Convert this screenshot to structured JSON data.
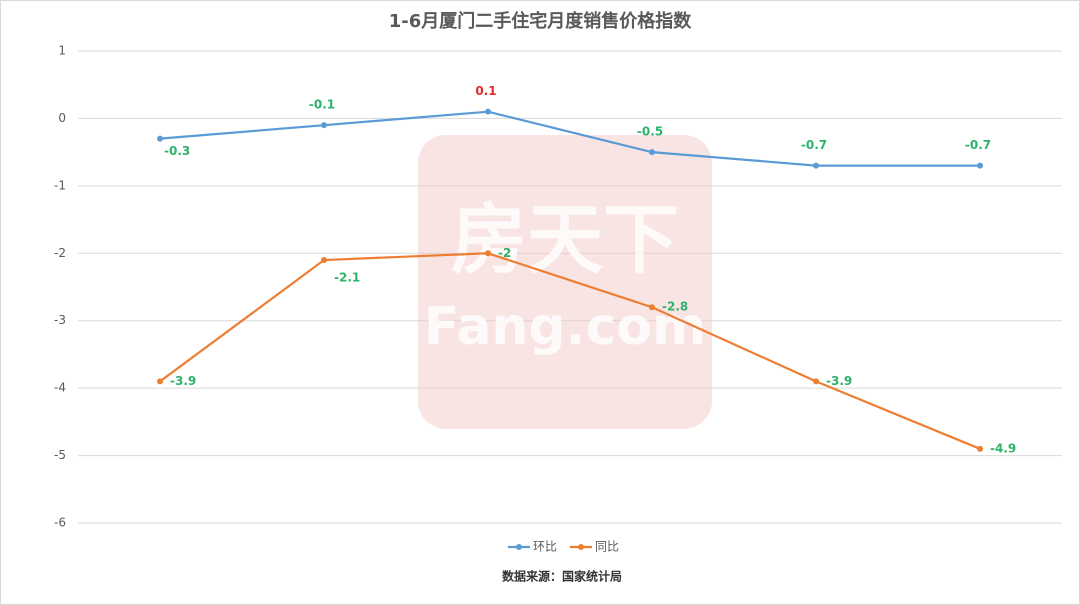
{
  "chart_data": {
    "type": "line",
    "title": "1-6月厦门二手住宅月度销售价格指数",
    "categories": [
      null,
      null,
      null,
      null,
      null,
      null
    ],
    "series": [
      {
        "name": "环比",
        "color": "#5b9bd5",
        "values": [
          -0.3,
          -0.1,
          0.1,
          -0.5,
          -0.7,
          -0.7
        ]
      },
      {
        "name": "同比",
        "color": "#ed7d31",
        "values": [
          -3.9,
          -2.1,
          -2,
          -2.8,
          -3.9,
          -4.9
        ]
      }
    ],
    "ylim": [
      -6,
      1
    ],
    "yticks": [
      -6,
      -5,
      -4,
      -3,
      -2,
      -1,
      0,
      1
    ],
    "grid": true,
    "legend": "bottom",
    "label_colors": {
      "positive": "#e02a2a",
      "negative": "#2bb36a"
    },
    "source": "数据来源：国家统计局",
    "watermark": {
      "text": "房天下",
      "subtext": "Fang.com"
    }
  }
}
